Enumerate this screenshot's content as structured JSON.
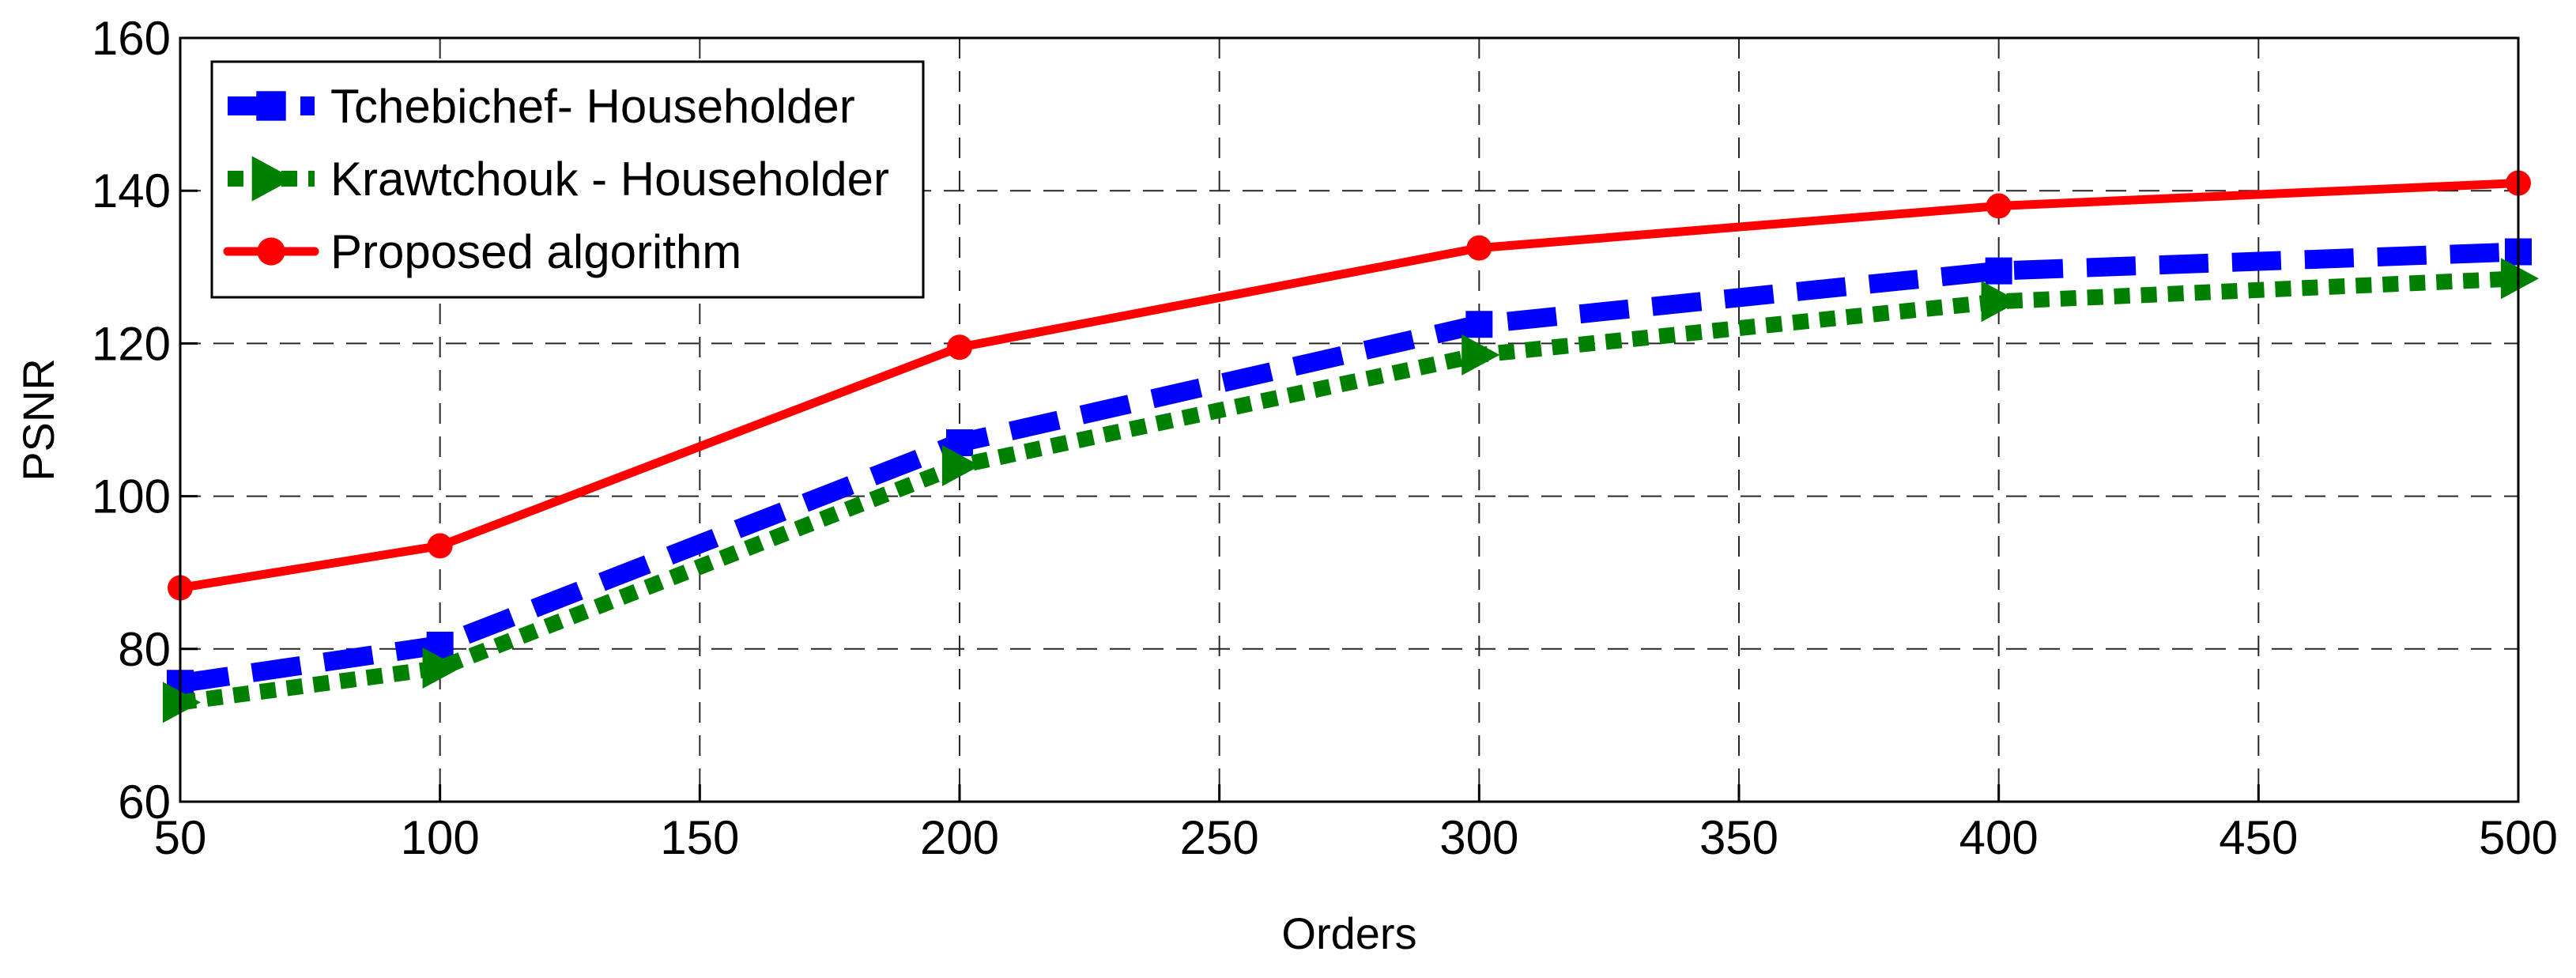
{
  "chart_data": {
    "type": "line",
    "title": "",
    "xlabel": "Orders",
    "ylabel": "PSNR",
    "xlim": [
      50,
      500
    ],
    "ylim": [
      60,
      160
    ],
    "xticks": [
      "50",
      "100",
      "150",
      "200",
      "250",
      "300",
      "350",
      "400",
      "450",
      "500"
    ],
    "yticks": [
      "60",
      "80",
      "100",
      "120",
      "140",
      "160"
    ],
    "grid": true,
    "legend_position": "top-left",
    "x": [
      50,
      100,
      200,
      300,
      400,
      500
    ],
    "series": [
      {
        "name": "Tchebichef- Householder",
        "values": [
          75.5,
          80.5,
          107,
          122.5,
          129.5,
          132
        ],
        "color": "#0000ff",
        "line_style": "dashed",
        "marker": "square"
      },
      {
        "name": "Krawtchouk - Householder",
        "values": [
          73,
          77.5,
          104,
          118.5,
          125.5,
          128.5
        ],
        "color": "#008000",
        "line_style": "dotted",
        "marker": "triangle-right"
      },
      {
        "name": "Proposed algorithm",
        "values": [
          88,
          93.5,
          119.5,
          132.5,
          138,
          141
        ],
        "color": "#ff0000",
        "line_style": "solid",
        "marker": "circle"
      }
    ]
  }
}
